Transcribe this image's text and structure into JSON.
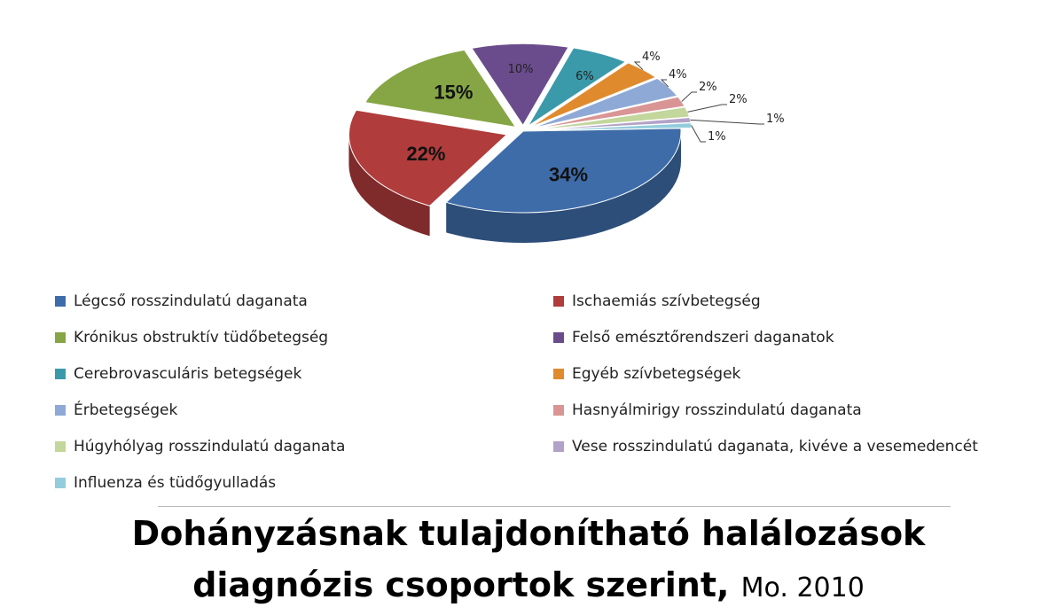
{
  "chart_data": {
    "type": "pie",
    "title": "Dohányzásnak tulajdonítható halálozások diagnózis csoportok szerint,",
    "subtitle": "Mo. 2010",
    "legend_placement": "bottom",
    "slices": [
      {
        "name": "Légcső rosszindulatú daganata",
        "value": 34,
        "label": "34%",
        "color": "#3e6ca8"
      },
      {
        "name": "Ischaemiás szívbetegség",
        "value": 22,
        "label": "22%",
        "color": "#b03c3c"
      },
      {
        "name": "Krónikus obstruktív tüdőbetegség",
        "value": 15,
        "label": "15%",
        "color": "#86a544"
      },
      {
        "name": "Felső emésztőrendszeri daganatok",
        "value": 10,
        "label": "10%",
        "color": "#6a4c8c"
      },
      {
        "name": "Cerebrovasculáris betegségek",
        "value": 6,
        "label": "6%",
        "color": "#3a9aaa"
      },
      {
        "name": "Egyéb szívbetegségek",
        "value": 4,
        "label": "4%",
        "color": "#e08a2e"
      },
      {
        "name": "Érbetegségek",
        "value": 4,
        "label": "4%",
        "color": "#8ea9d6"
      },
      {
        "name": "Hasnyálmirigy rosszindulatú daganata",
        "value": 2,
        "label": "2%",
        "color": "#d99594"
      },
      {
        "name": "Húgyhólyag rosszindulatú daganata",
        "value": 2,
        "label": "2%",
        "color": "#c3d69b"
      },
      {
        "name": "Vese rosszindulatú daganata, kivéve a vesemedencét",
        "value": 1,
        "label": "1%",
        "color": "#b3a2c7"
      },
      {
        "name": "Influenza és tüdőgyulladás",
        "value": 1,
        "label": "1%",
        "color": "#93cddd"
      }
    ]
  }
}
